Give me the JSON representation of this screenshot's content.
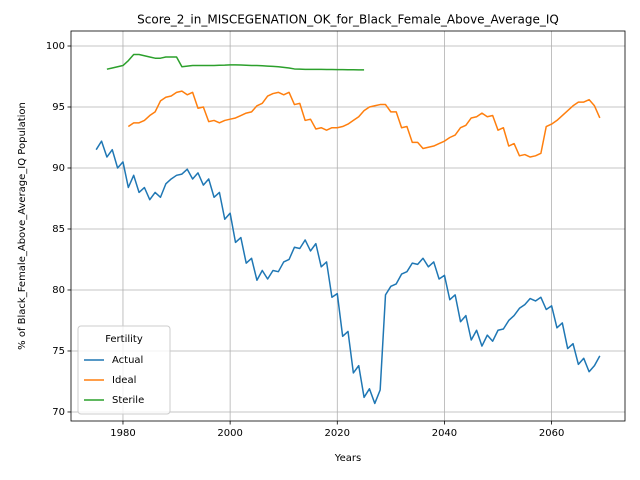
{
  "chart_data": {
    "type": "line",
    "title": "Score_2_in_MISCEGENATION_OK_for_Black_Female_Above_Average_IQ",
    "xlabel": "Years",
    "ylabel": "% of Black_Female_Above_Average_IQ Population",
    "legend_title": "Fertility",
    "legend": "lower left",
    "grid": true,
    "xlim": [
      1970.3,
      2073.7
    ],
    "ylim": [
      69.26,
      101.23
    ],
    "xticks": [
      1980,
      2000,
      2020,
      2040,
      2060
    ],
    "yticks": [
      70,
      75,
      80,
      85,
      90,
      95,
      100
    ],
    "x": [
      1975,
      1976,
      1977,
      1978,
      1979,
      1980,
      1981,
      1982,
      1983,
      1984,
      1985,
      1986,
      1987,
      1988,
      1989,
      1990,
      1991,
      1992,
      1993,
      1994,
      1995,
      1996,
      1997,
      1998,
      1999,
      2000,
      2001,
      2002,
      2003,
      2004,
      2005,
      2006,
      2007,
      2008,
      2009,
      2010,
      2011,
      2012,
      2013,
      2014,
      2015,
      2016,
      2017,
      2018,
      2019,
      2020,
      2021,
      2022,
      2023,
      2024,
      2025,
      2026,
      2027,
      2028,
      2029,
      2030,
      2031,
      2032,
      2033,
      2034,
      2035,
      2036,
      2037,
      2038,
      2039,
      2040,
      2041,
      2042,
      2043,
      2044,
      2045,
      2046,
      2047,
      2048,
      2049,
      2050,
      2051,
      2052,
      2053,
      2054,
      2055,
      2056,
      2057,
      2058,
      2059,
      2060,
      2061,
      2062,
      2063,
      2064,
      2065,
      2066,
      2067,
      2068,
      2069
    ],
    "series": [
      {
        "name": "Actual",
        "color": "#1f77b4",
        "values": [
          91.5,
          92.2,
          90.9,
          91.5,
          90.0,
          90.5,
          88.4,
          89.4,
          88.0,
          88.4,
          87.4,
          88.0,
          87.6,
          88.7,
          89.1,
          89.4,
          89.5,
          89.9,
          89.1,
          89.6,
          88.6,
          89.1,
          87.6,
          88.0,
          85.8,
          86.3,
          83.9,
          84.3,
          82.2,
          82.6,
          80.8,
          81.6,
          80.9,
          81.6,
          81.5,
          82.3,
          82.5,
          83.5,
          83.4,
          84.1,
          83.2,
          83.8,
          81.9,
          82.3,
          79.4,
          79.7,
          76.2,
          76.6,
          73.2,
          73.8,
          71.2,
          71.9,
          70.7,
          71.8,
          79.6,
          80.3,
          80.5,
          81.3,
          81.5,
          82.2,
          82.1,
          82.6,
          81.9,
          82.3,
          80.9,
          81.2,
          79.2,
          79.6,
          77.4,
          77.9,
          75.9,
          76.7,
          75.4,
          76.3,
          75.8,
          76.7,
          76.8,
          77.5,
          77.9,
          78.5,
          78.8,
          79.3,
          79.1,
          79.4,
          78.4,
          78.7,
          76.9,
          77.3,
          75.2,
          75.6,
          73.9,
          74.4,
          73.3,
          73.8,
          74.6
        ]
      },
      {
        "name": "Ideal",
        "color": "#ff7f0e",
        "values": [
          null,
          null,
          null,
          null,
          null,
          null,
          93.4,
          93.7,
          93.7,
          93.9,
          94.3,
          94.6,
          95.5,
          95.8,
          95.9,
          96.2,
          96.3,
          96.0,
          96.2,
          94.9,
          95.0,
          93.8,
          93.9,
          93.7,
          93.9,
          94.0,
          94.1,
          94.3,
          94.5,
          94.6,
          95.1,
          95.3,
          95.9,
          96.1,
          96.2,
          96.0,
          96.2,
          95.2,
          95.3,
          93.9,
          94.0,
          93.2,
          93.3,
          93.1,
          93.3,
          93.3,
          93.4,
          93.6,
          93.9,
          94.2,
          94.7,
          95.0,
          95.1,
          95.2,
          95.2,
          94.6,
          94.6,
          93.3,
          93.4,
          92.1,
          92.1,
          91.6,
          91.7,
          91.8,
          92.0,
          92.2,
          92.5,
          92.7,
          93.3,
          93.5,
          94.1,
          94.2,
          94.5,
          94.2,
          94.3,
          93.1,
          93.3,
          91.8,
          92.0,
          91.0,
          91.1,
          90.9,
          91.0,
          91.2,
          93.4,
          93.6,
          93.9,
          94.3,
          94.7,
          95.1,
          95.4,
          95.4,
          95.6,
          95.1,
          94.1
        ]
      },
      {
        "name": "Sterile",
        "color": "#2ca02c",
        "values": [
          null,
          null,
          98.1,
          98.2,
          98.3,
          98.4,
          98.8,
          99.3,
          99.3,
          99.2,
          99.1,
          99.0,
          99.0,
          99.1,
          99.1,
          99.1,
          98.3,
          98.35,
          98.4,
          98.4,
          98.4,
          98.4,
          98.4,
          98.42,
          98.43,
          98.45,
          98.45,
          98.44,
          98.42,
          98.4,
          98.4,
          98.38,
          98.35,
          98.33,
          98.3,
          98.25,
          98.2,
          98.12,
          98.1,
          98.08,
          98.08,
          98.08,
          98.08,
          98.07,
          98.07,
          98.06,
          98.06,
          98.05,
          98.05,
          98.04,
          98.04,
          null,
          null,
          null,
          null,
          null,
          null,
          null,
          null,
          null,
          null,
          null,
          null,
          null,
          null,
          null,
          null,
          null,
          null,
          null,
          null,
          null,
          null,
          null,
          null,
          null,
          null,
          null,
          null,
          null,
          null,
          null,
          null,
          null,
          null,
          null,
          null,
          null,
          null,
          null,
          null,
          null,
          null,
          null,
          null
        ]
      }
    ]
  }
}
